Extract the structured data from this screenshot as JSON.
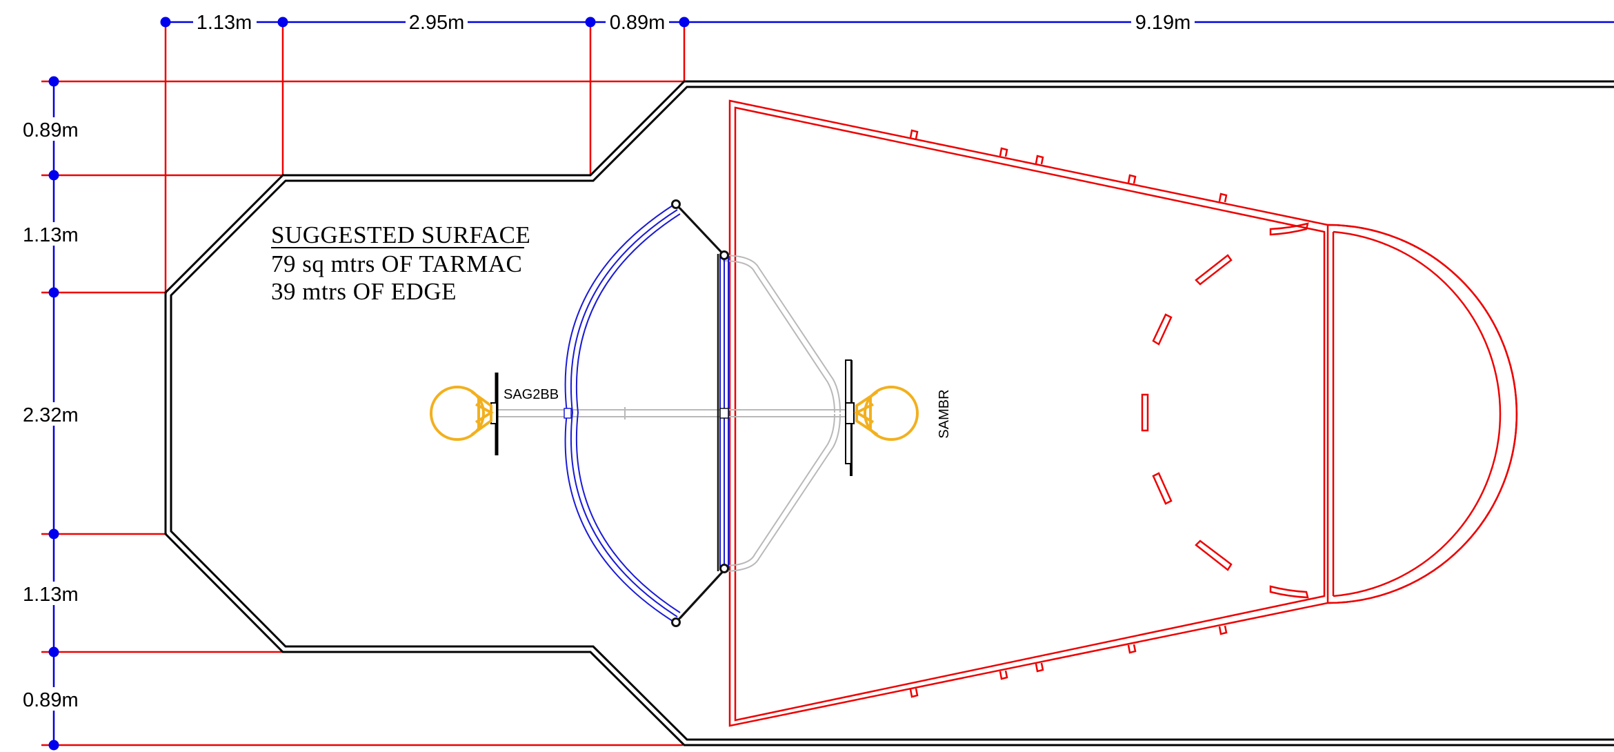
{
  "top_dimensions": [
    "1.13m",
    "2.95m",
    "0.89m",
    "9.19m"
  ],
  "side_dimensions": [
    "0.89m",
    "1.13m",
    "2.32m",
    "1.13m",
    "0.89m"
  ],
  "note": {
    "title": "SUGGESTED SURFACE",
    "line1": "79 sq mtrs OF TARMAC",
    "line2": "39 mtrs OF EDGE"
  },
  "equipment": {
    "left_unit": "SAG2BB",
    "right_unit": "SAMBR"
  },
  "colors": {
    "dimension": "#0000dd",
    "extension": "#ee0000",
    "court_lines": "#ee0000",
    "surface_edge": "#000000",
    "bench_frame": "#1a1ad6",
    "hoop": "#f2b01e",
    "frame_grey": "#b8b8b8"
  }
}
